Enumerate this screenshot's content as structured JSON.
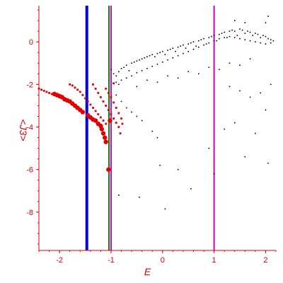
{
  "chart_data": {
    "type": "scatter",
    "title": "",
    "xlabel": "E",
    "ylabel": "<J3>",
    "xlim": [
      -2.4,
      2.2
    ],
    "ylim": [
      -9.8,
      1.7
    ],
    "grid": false,
    "x_ticks": [
      "-2",
      "-1",
      "0",
      "1",
      "2"
    ],
    "x_tick_values": [
      -2,
      -1,
      0,
      1,
      2
    ],
    "y_ticks": [
      "0",
      "-2",
      "-4",
      "-6",
      "-8"
    ],
    "y_tick_values": [
      0,
      -2,
      -4,
      -6,
      -8
    ],
    "colors": {
      "axis": "#e00000",
      "black_points": "#000000",
      "red_points": "#e00000",
      "line_blue": "#0000ee",
      "line_green": "#008000",
      "line_magenta": "#cc00cc"
    },
    "vertical_lines": [
      {
        "x": -1.47,
        "color": "#0000ee",
        "width": 4
      },
      {
        "x": -1.04,
        "color": "#008000",
        "width": 2
      },
      {
        "x": -1.0,
        "color": "#cc00cc",
        "width": 2
      },
      {
        "x": 1.0,
        "color": "#cc00cc",
        "width": 2
      }
    ],
    "series": [
      {
        "marker": "black-dot",
        "points": [
          [
            -1.0,
            -1.3
          ],
          [
            -0.95,
            -1.5
          ],
          [
            -0.9,
            -1.6
          ],
          [
            -0.85,
            -1.4
          ],
          [
            -0.8,
            -1.25
          ],
          [
            -0.75,
            -1.2
          ],
          [
            -0.7,
            -1.1
          ],
          [
            -0.65,
            -1.35
          ],
          [
            -0.6,
            -1.0
          ],
          [
            -0.55,
            -0.95
          ],
          [
            -0.5,
            -0.9
          ],
          [
            -0.45,
            -0.85
          ],
          [
            -0.4,
            -0.8
          ],
          [
            -0.35,
            -0.75
          ],
          [
            -0.3,
            -0.7
          ],
          [
            -0.25,
            -0.65
          ],
          [
            -0.2,
            -0.6
          ],
          [
            -0.15,
            -0.7
          ],
          [
            -0.1,
            -0.55
          ],
          [
            -0.05,
            -0.5
          ],
          [
            0.0,
            -0.45
          ],
          [
            0.05,
            -0.6
          ],
          [
            0.1,
            -0.4
          ],
          [
            0.15,
            -0.35
          ],
          [
            0.2,
            -0.3
          ],
          [
            0.25,
            -0.45
          ],
          [
            0.3,
            -0.25
          ],
          [
            0.35,
            -0.2
          ],
          [
            0.4,
            -0.15
          ],
          [
            0.45,
            -0.3
          ],
          [
            0.5,
            -0.1
          ],
          [
            0.55,
            -0.05
          ],
          [
            0.6,
            0.0
          ],
          [
            0.65,
            -0.2
          ],
          [
            0.7,
            0.05
          ],
          [
            0.75,
            0.1
          ],
          [
            0.8,
            0.15
          ],
          [
            0.85,
            -0.1
          ],
          [
            0.9,
            0.2
          ],
          [
            0.95,
            0.25
          ],
          [
            1.0,
            0.3
          ],
          [
            1.05,
            0.05
          ],
          [
            1.1,
            0.35
          ],
          [
            1.15,
            0.4
          ],
          [
            1.2,
            0.45
          ],
          [
            1.25,
            0.2
          ],
          [
            1.3,
            0.5
          ],
          [
            1.35,
            0.55
          ],
          [
            1.4,
            0.5
          ],
          [
            1.45,
            0.3
          ],
          [
            1.5,
            0.6
          ],
          [
            1.55,
            0.55
          ],
          [
            1.6,
            0.4
          ],
          [
            1.65,
            0.5
          ],
          [
            1.7,
            0.45
          ],
          [
            1.75,
            0.3
          ],
          [
            1.8,
            0.4
          ],
          [
            1.85,
            0.35
          ],
          [
            1.9,
            0.2
          ],
          [
            1.95,
            0.3
          ],
          [
            2.0,
            0.25
          ],
          [
            2.05,
            0.15
          ],
          [
            2.1,
            0.1
          ],
          [
            2.15,
            0.05
          ],
          [
            -0.9,
            -1.9
          ],
          [
            -0.85,
            -2.0
          ],
          [
            -0.8,
            -1.8
          ],
          [
            -0.7,
            -1.7
          ],
          [
            -0.6,
            -1.6
          ],
          [
            -0.5,
            -1.45
          ],
          [
            -0.4,
            -1.35
          ],
          [
            -0.3,
            -1.25
          ],
          [
            -0.2,
            -1.15
          ],
          [
            -0.1,
            -1.05
          ],
          [
            0.0,
            -0.95
          ],
          [
            0.1,
            -0.85
          ],
          [
            0.2,
            -0.75
          ],
          [
            0.3,
            -0.65
          ],
          [
            0.4,
            -0.55
          ],
          [
            0.5,
            -0.45
          ],
          [
            0.6,
            -0.35
          ],
          [
            0.7,
            -0.25
          ],
          [
            0.8,
            -0.15
          ],
          [
            0.9,
            -0.05
          ],
          [
            1.0,
            0.05
          ],
          [
            1.1,
            0.15
          ],
          [
            1.2,
            0.2
          ],
          [
            1.3,
            0.25
          ],
          [
            1.4,
            0.2
          ],
          [
            1.5,
            0.15
          ],
          [
            1.6,
            0.1
          ],
          [
            1.7,
            0.05
          ],
          [
            1.8,
            0.0
          ],
          [
            1.9,
            -0.05
          ],
          [
            2.0,
            -0.1
          ],
          [
            2.1,
            -0.05
          ],
          [
            -0.5,
            -2.1
          ],
          [
            -0.3,
            -1.8
          ],
          [
            -0.1,
            -1.9
          ],
          [
            0.1,
            -1.6
          ],
          [
            0.3,
            -1.7
          ],
          [
            0.5,
            -1.4
          ],
          [
            0.7,
            -1.5
          ],
          [
            0.9,
            -1.2
          ],
          [
            1.1,
            -1.3
          ],
          [
            1.3,
            -1.0
          ],
          [
            1.5,
            -1.1
          ],
          [
            1.7,
            -0.8
          ],
          [
            -0.9,
            -2.5
          ],
          [
            -0.8,
            -2.8
          ],
          [
            -0.7,
            -3.1
          ],
          [
            -0.6,
            -3.3
          ],
          [
            -0.5,
            -3.5
          ],
          [
            -0.4,
            -3.7
          ],
          [
            -0.2,
            -4.2
          ],
          [
            -0.1,
            -4.5
          ],
          [
            -0.05,
            -5.8
          ],
          [
            0.3,
            -6.0
          ],
          [
            0.55,
            -6.9
          ],
          [
            0.9,
            -5.0
          ],
          [
            1.0,
            -6.2
          ],
          [
            1.2,
            -4.1
          ],
          [
            1.4,
            -3.8
          ],
          [
            1.6,
            -5.4
          ],
          [
            1.8,
            -4.3
          ],
          [
            2.0,
            -3.2
          ],
          [
            2.05,
            -5.7
          ],
          [
            1.5,
            -2.3
          ],
          [
            1.7,
            -2.6
          ],
          [
            1.9,
            -2.4
          ],
          [
            1.3,
            -2.1
          ],
          [
            2.1,
            -2.0
          ],
          [
            -0.85,
            -7.2
          ],
          [
            -0.45,
            -7.3
          ],
          [
            0.05,
            -7.85
          ],
          [
            2.0,
            0.9
          ],
          [
            2.05,
            1.2
          ],
          [
            1.4,
            1.0
          ],
          [
            1.6,
            0.9
          ]
        ]
      },
      {
        "marker": "red-small",
        "points": [
          [
            -2.4,
            -2.2
          ],
          [
            -2.35,
            -2.25
          ],
          [
            -2.3,
            -2.3
          ],
          [
            -2.25,
            -2.35
          ],
          [
            -2.2,
            -2.4
          ],
          [
            -2.15,
            -2.45
          ],
          [
            -1.8,
            -2.0
          ],
          [
            -1.75,
            -2.05
          ],
          [
            -1.7,
            -2.15
          ],
          [
            -1.65,
            -2.25
          ],
          [
            -1.6,
            -2.35
          ],
          [
            -1.55,
            -2.5
          ],
          [
            -1.5,
            -2.65
          ],
          [
            -1.45,
            -2.8
          ],
          [
            -1.4,
            -2.95
          ],
          [
            -1.35,
            -3.1
          ],
          [
            -1.3,
            -3.25
          ],
          [
            -1.25,
            -3.4
          ],
          [
            -1.2,
            -3.55
          ],
          [
            -1.15,
            -3.7
          ],
          [
            -1.1,
            -3.85
          ],
          [
            -1.35,
            -2.0
          ],
          [
            -1.3,
            -2.2
          ],
          [
            -1.25,
            -2.4
          ],
          [
            -1.2,
            -2.6
          ],
          [
            -1.15,
            -2.8
          ],
          [
            -1.1,
            -3.0
          ],
          [
            -1.05,
            -3.2
          ],
          [
            -1.0,
            -3.4
          ],
          [
            -0.95,
            -3.6
          ],
          [
            -0.9,
            -3.8
          ],
          [
            -0.85,
            -4.0
          ],
          [
            -0.82,
            -4.3
          ],
          [
            -1.1,
            -2.2
          ],
          [
            -1.05,
            -2.4
          ],
          [
            -1.0,
            -2.6
          ],
          [
            -0.95,
            -2.85
          ],
          [
            -0.9,
            -3.1
          ],
          [
            -0.85,
            -3.35
          ],
          [
            -0.8,
            -3.6
          ],
          [
            -0.78,
            -3.85
          ],
          [
            -0.95,
            -1.95
          ]
        ]
      },
      {
        "marker": "red-large",
        "points": [
          [
            -2.1,
            -2.45
          ],
          [
            -2.05,
            -2.5
          ],
          [
            -2.0,
            -2.55
          ],
          [
            -1.95,
            -2.6
          ],
          [
            -1.9,
            -2.7
          ],
          [
            -1.85,
            -2.75
          ],
          [
            -1.8,
            -2.8
          ],
          [
            -1.75,
            -2.9
          ],
          [
            -1.7,
            -3.0
          ],
          [
            -1.65,
            -3.1
          ],
          [
            -1.6,
            -3.2
          ],
          [
            -1.55,
            -3.3
          ],
          [
            -1.45,
            -3.45
          ],
          [
            -1.4,
            -3.55
          ],
          [
            -1.35,
            -3.65
          ],
          [
            -1.3,
            -3.7
          ],
          [
            -1.25,
            -3.85
          ],
          [
            -1.2,
            -3.95
          ],
          [
            -1.18,
            -4.1
          ],
          [
            -1.15,
            -4.3
          ],
          [
            -1.12,
            -4.5
          ],
          [
            -1.1,
            -4.7
          ],
          [
            -1.05,
            -6.0
          ],
          [
            -1.02,
            -3.7
          ]
        ]
      }
    ]
  }
}
